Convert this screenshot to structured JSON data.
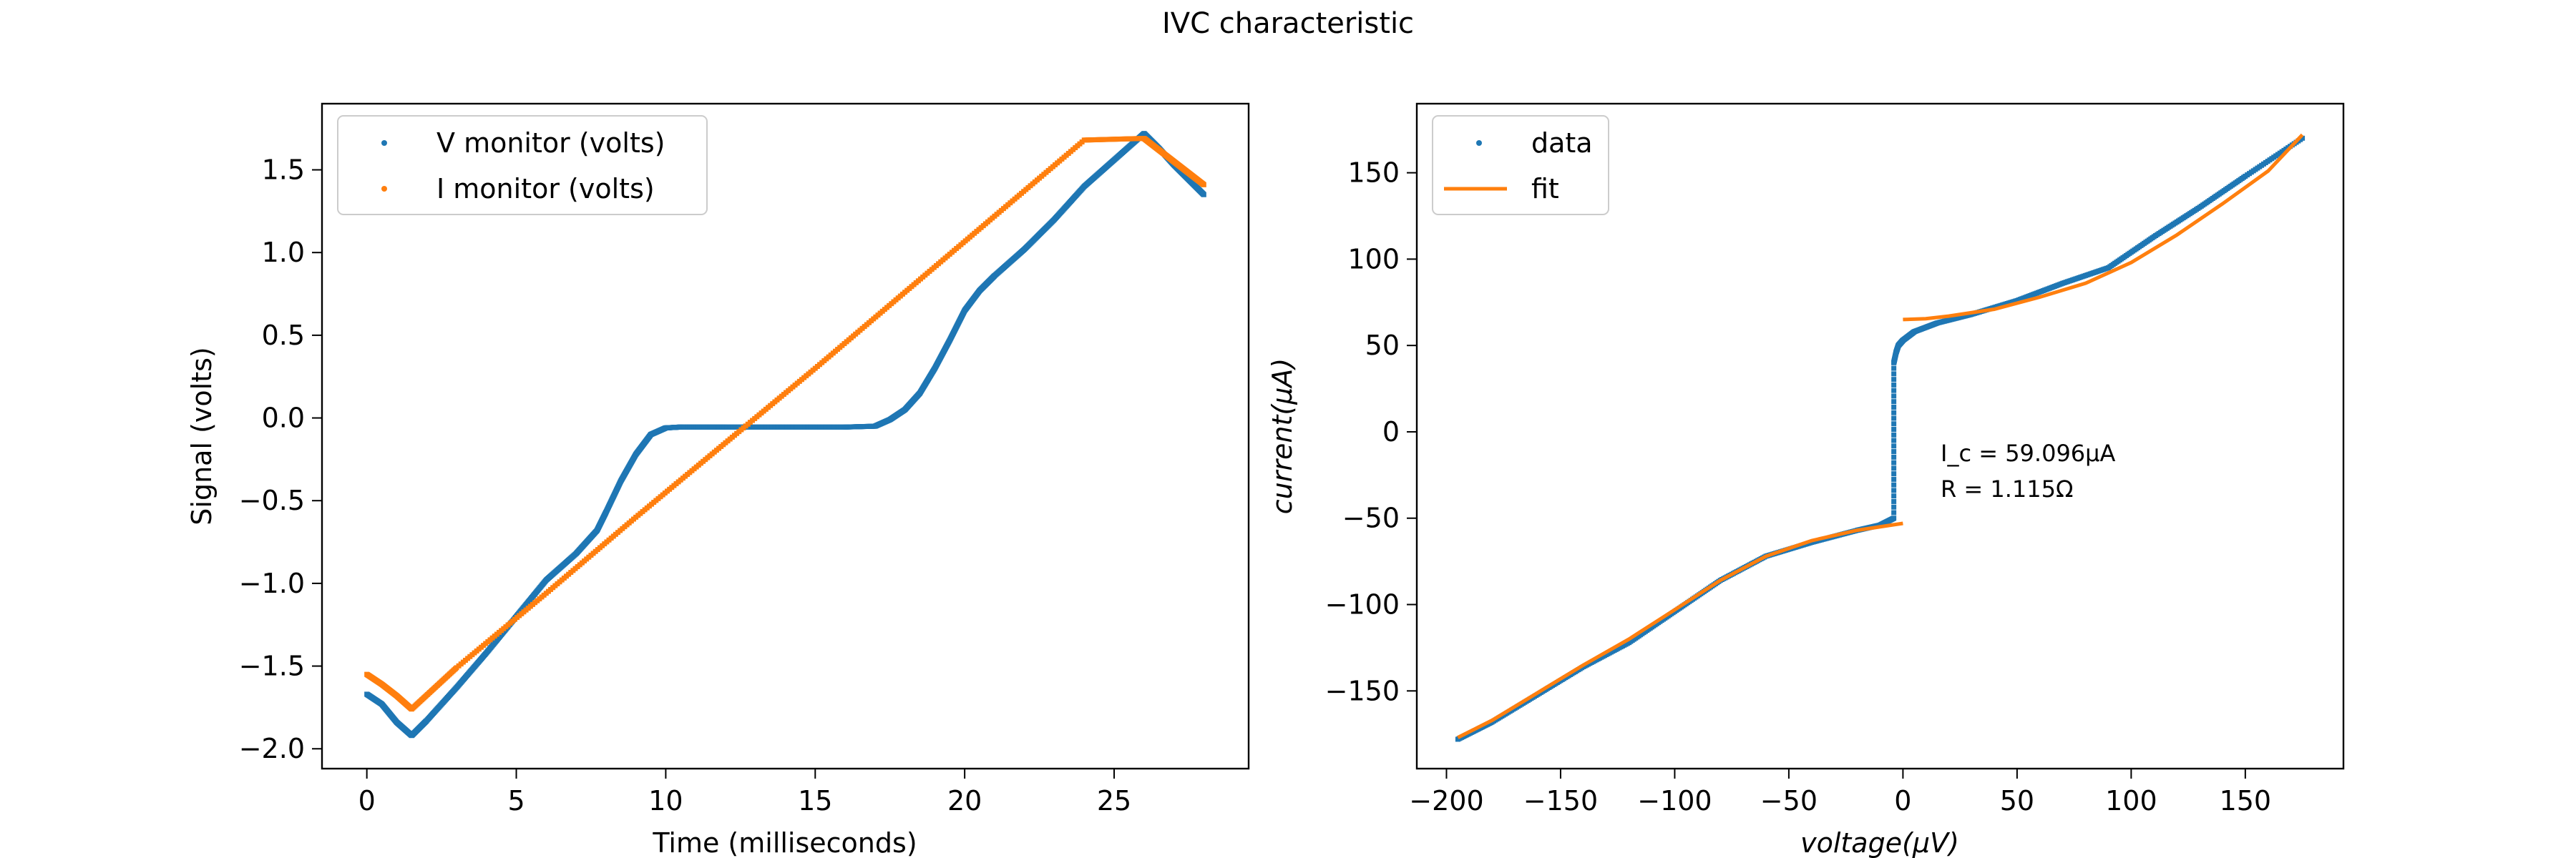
{
  "figure": {
    "title": "IVC characteristic"
  },
  "colors": {
    "blue": "#1f77b4",
    "orange": "#ff7f0e"
  },
  "chart_data": [
    {
      "type": "scatter",
      "title": "",
      "xlabel": "Time (milliseconds)",
      "ylabel": "Signal (volts)",
      "xlim": [
        -1.5,
        29.5
      ],
      "ylim": [
        -2.12,
        1.9
      ],
      "xticks": [
        0,
        5,
        10,
        15,
        20,
        25
      ],
      "xtick_labels": [
        "0",
        "5",
        "10",
        "15",
        "20",
        "25"
      ],
      "yticks": [
        -2.0,
        -1.5,
        -1.0,
        -0.5,
        0.0,
        0.5,
        1.0,
        1.5
      ],
      "ytick_labels": [
        "−2.0",
        "−1.5",
        "−1.0",
        "−0.5",
        "0.0",
        "0.5",
        "1.0",
        "1.5"
      ],
      "legend_placement": "upper-left",
      "grid": false,
      "series": [
        {
          "name": "V monitor (volts)",
          "color": "#1f77b4",
          "x": [
            0,
            0.5,
            1.0,
            1.5,
            2,
            3,
            4,
            5,
            6,
            7,
            7.7,
            8,
            8.5,
            9,
            9.5,
            10,
            10.5,
            12,
            14,
            16,
            17,
            17.5,
            18,
            18.5,
            19,
            19.5,
            20,
            20.5,
            21,
            22,
            23,
            24,
            25,
            26,
            26.5,
            27,
            27.5,
            28
          ],
          "y": [
            -1.67,
            -1.73,
            -1.84,
            -1.92,
            -1.83,
            -1.63,
            -1.42,
            -1.2,
            -0.98,
            -0.82,
            -0.68,
            -0.57,
            -0.38,
            -0.22,
            -0.1,
            -0.06,
            -0.055,
            -0.055,
            -0.055,
            -0.055,
            -0.05,
            -0.01,
            0.05,
            0.15,
            0.3,
            0.47,
            0.65,
            0.77,
            0.86,
            1.02,
            1.2,
            1.4,
            1.56,
            1.72,
            1.63,
            1.53,
            1.44,
            1.35
          ]
        },
        {
          "name": "I monitor (volts)",
          "color": "#ff7f0e",
          "x": [
            0,
            0.5,
            1.0,
            1.5,
            3,
            6,
            9,
            12,
            15,
            18,
            21,
            24,
            26,
            26.5,
            27,
            27.5,
            28
          ],
          "y": [
            -1.55,
            -1.61,
            -1.68,
            -1.76,
            -1.51,
            -1.06,
            -0.6,
            -0.15,
            0.3,
            0.76,
            1.22,
            1.68,
            1.69,
            1.62,
            1.55,
            1.48,
            1.41
          ]
        }
      ]
    },
    {
      "type": "scatter",
      "title": "",
      "xlabel": "voltage(μV)",
      "ylabel": "current(μA)",
      "xlim": [
        -213,
        193
      ],
      "ylim": [
        -195,
        190
      ],
      "xticks": [
        -200,
        -150,
        -100,
        -50,
        0,
        50,
        100,
        150
      ],
      "xtick_labels": [
        "−200",
        "−150",
        "−100",
        "−50",
        "0",
        "50",
        "100",
        "150"
      ],
      "yticks": [
        -150,
        -100,
        -50,
        0,
        50,
        100,
        150
      ],
      "ytick_labels": [
        "−150",
        "−100",
        "−50",
        "0",
        "50",
        "100",
        "150"
      ],
      "legend_placement": "upper-left",
      "grid": false,
      "annotation": {
        "line1": "I_c = 59.096μA",
        "line2": "R = 1.115Ω",
        "x": 20,
        "y": -15
      },
      "series": [
        {
          "name": "data",
          "color": "#1f77b4",
          "x": [
            -195,
            -180,
            -160,
            -140,
            -120,
            -100,
            -80,
            -60,
            -40,
            -20,
            -10,
            -4,
            -4,
            -3,
            -2,
            0,
            5,
            15,
            30,
            50,
            70,
            90,
            110,
            130,
            150,
            175
          ],
          "y": [
            -178,
            -168,
            -152,
            -136,
            -122,
            -104,
            -86,
            -72,
            -64,
            -57,
            -54,
            -50,
            40,
            46,
            50,
            53,
            58,
            63,
            68,
            76,
            86,
            95,
            113,
            130,
            148,
            170
          ]
        },
        {
          "name": "fit",
          "color": "#ff7f0e",
          "x": [
            -195,
            -180,
            -160,
            -140,
            -120,
            -100,
            -80,
            -60,
            -40,
            -20,
            -5,
            0
          ],
          "y": [
            -177,
            -167,
            -151,
            -135,
            -120,
            -103,
            -86,
            -72,
            -63,
            -57,
            -54,
            -53
          ],
          "x2": [
            0,
            10,
            20,
            40,
            60,
            80,
            100,
            120,
            140,
            160,
            175
          ],
          "y2": [
            65,
            65.5,
            67,
            71,
            78,
            86,
            98,
            114,
            132,
            151,
            172
          ]
        }
      ]
    }
  ]
}
